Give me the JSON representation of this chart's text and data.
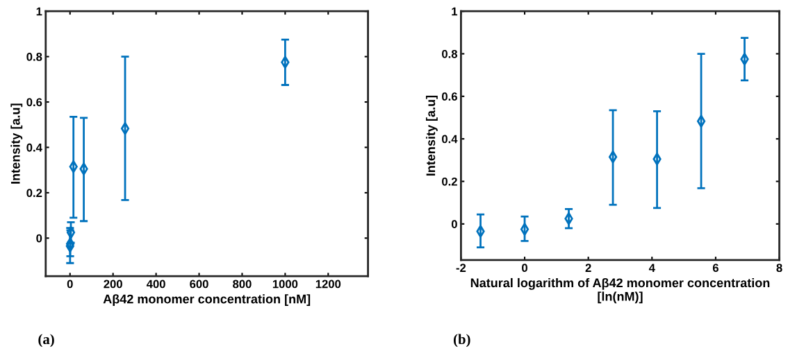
{
  "chart_data": [
    {
      "type": "scatter",
      "xlabel": "Aβ42 monomer concentration [nM]",
      "ylabel": "Intensity [a.u]",
      "annotations": [
        "(a)"
      ],
      "x": [
        0.25,
        1,
        4,
        16,
        64,
        256,
        1000
      ],
      "values": [
        -0.035,
        -0.025,
        0.025,
        0.315,
        0.305,
        0.483,
        0.775
      ],
      "errors": [
        [
          -0.11,
          0.045
        ],
        [
          -0.08,
          0.035
        ],
        [
          -0.02,
          0.07
        ],
        [
          0.09,
          0.535
        ],
        [
          0.075,
          0.53
        ],
        [
          0.168,
          0.8
        ],
        [
          0.675,
          0.875
        ]
      ],
      "color": "#0072bd",
      "marker": "diamond",
      "xlim": [
        -113,
        1385
      ],
      "xticks": [
        0,
        200,
        400,
        600,
        800,
        1000,
        1200
      ],
      "ylim": [
        -0.168,
        1
      ],
      "yticks": [
        0,
        0.2,
        0.4,
        0.6,
        0.8,
        1
      ],
      "grid": false
    },
    {
      "type": "scatter",
      "xlabel": "Natural logarithm of Aβ42 monomer concentration [ln(nM)]",
      "ylabel": "Intensity [a.u]",
      "annotations": [
        "(b)"
      ],
      "x": [
        -1.386,
        0,
        1.386,
        2.773,
        4.159,
        5.545,
        6.908
      ],
      "values": [
        -0.035,
        -0.025,
        0.025,
        0.315,
        0.305,
        0.483,
        0.775
      ],
      "errors": [
        [
          -0.11,
          0.045
        ],
        [
          -0.08,
          0.035
        ],
        [
          -0.02,
          0.07
        ],
        [
          0.09,
          0.535
        ],
        [
          0.075,
          0.53
        ],
        [
          0.168,
          0.8
        ],
        [
          0.675,
          0.875
        ]
      ],
      "color": "#0072bd",
      "marker": "diamond",
      "xlim": [
        -2,
        8
      ],
      "xticks": [
        -2,
        0,
        2,
        4,
        6,
        8
      ],
      "ylim": [
        -0.17,
        1
      ],
      "yticks": [
        0,
        0.2,
        0.4,
        0.6,
        0.8,
        1
      ],
      "grid": false
    }
  ]
}
